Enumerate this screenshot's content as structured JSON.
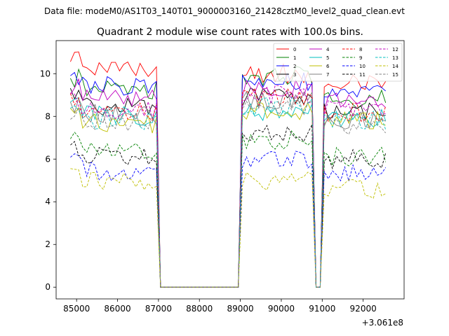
{
  "figure": {
    "suptitle": "Data file: modeM0/AS1T03_140T01_9000003160_21428cztM0_level2_quad_clean.evt",
    "background": "#ffffff"
  },
  "chart_data": {
    "type": "line",
    "title": "Quadrant 2 module wise count rates with 100.0s bins.",
    "xlabel": "",
    "ylabel": "",
    "x_offset_label": "+3.061e8",
    "xlim": [
      84500,
      93000
    ],
    "ylim": [
      -0.55,
      11.55
    ],
    "x_ticks": [
      85000,
      86000,
      87000,
      88000,
      89000,
      90000,
      91000,
      92000
    ],
    "x_tick_labels": [
      "85000",
      "86000",
      "87000",
      "88000",
      "89000",
      "90000",
      "91000",
      "92000"
    ],
    "y_ticks": [
      0,
      2,
      4,
      6,
      8,
      10
    ],
    "y_tick_labels": [
      "0",
      "2",
      "4",
      "6",
      "8",
      "10"
    ],
    "grid": false,
    "legend": {
      "placement": "top-right",
      "columns": 4
    },
    "segments": [
      {
        "start": 84850,
        "end": 86950
      },
      {
        "start": 89050,
        "end": 90750
      },
      {
        "start": 91050,
        "end": 92550
      }
    ],
    "gaps": [
      {
        "start": 87050,
        "end": 88950,
        "value": 0
      },
      {
        "start": 90850,
        "end": 90950,
        "value": 0
      }
    ],
    "series": [
      {
        "name": "0",
        "color": "#ff0000",
        "dash": "solid",
        "levels": [
          10.2,
          10.0,
          9.7
        ]
      },
      {
        "name": "1",
        "color": "#008000",
        "dash": "solid",
        "levels": [
          9.2,
          9.9,
          8.8
        ]
      },
      {
        "name": "2",
        "color": "#0000ff",
        "dash": "solid",
        "levels": [
          9.3,
          9.6,
          9.1
        ]
      },
      {
        "name": "3",
        "color": "#000000",
        "dash": "solid",
        "levels": [
          8.3,
          8.9,
          8.2
        ]
      },
      {
        "name": "4",
        "color": "#bf00bf",
        "dash": "solid",
        "levels": [
          8.8,
          9.3,
          8.7
        ]
      },
      {
        "name": "5",
        "color": "#00bfbf",
        "dash": "solid",
        "levels": [
          7.9,
          8.2,
          7.9
        ]
      },
      {
        "name": "6",
        "color": "#bfbf00",
        "dash": "solid",
        "levels": [
          7.6,
          8.3,
          7.8
        ]
      },
      {
        "name": "7",
        "color": "#808080",
        "dash": "solid",
        "levels": [
          8.0,
          8.8,
          7.8
        ]
      },
      {
        "name": "8",
        "color": "#ff0000",
        "dash": "dashed",
        "levels": [
          8.1,
          8.9,
          8.2
        ]
      },
      {
        "name": "9",
        "color": "#008000",
        "dash": "dashed",
        "levels": [
          6.3,
          6.9,
          6.1
        ]
      },
      {
        "name": "10",
        "color": "#0000ff",
        "dash": "dashed",
        "levels": [
          5.3,
          6.0,
          5.3
        ]
      },
      {
        "name": "11",
        "color": "#000000",
        "dash": "dashed",
        "levels": [
          6.0,
          7.2,
          6.0
        ]
      },
      {
        "name": "12",
        "color": "#bf00bf",
        "dash": "dashed",
        "levels": [
          8.2,
          9.0,
          8.3
        ]
      },
      {
        "name": "13",
        "color": "#00bfbf",
        "dash": "dashed",
        "levels": [
          7.7,
          8.5,
          7.8
        ]
      },
      {
        "name": "14",
        "color": "#bfbf00",
        "dash": "dashed",
        "levels": [
          4.9,
          5.0,
          4.6
        ]
      },
      {
        "name": "15",
        "color": "#808080",
        "dash": "dashed",
        "levels": [
          7.6,
          8.3,
          7.5
        ]
      }
    ]
  }
}
